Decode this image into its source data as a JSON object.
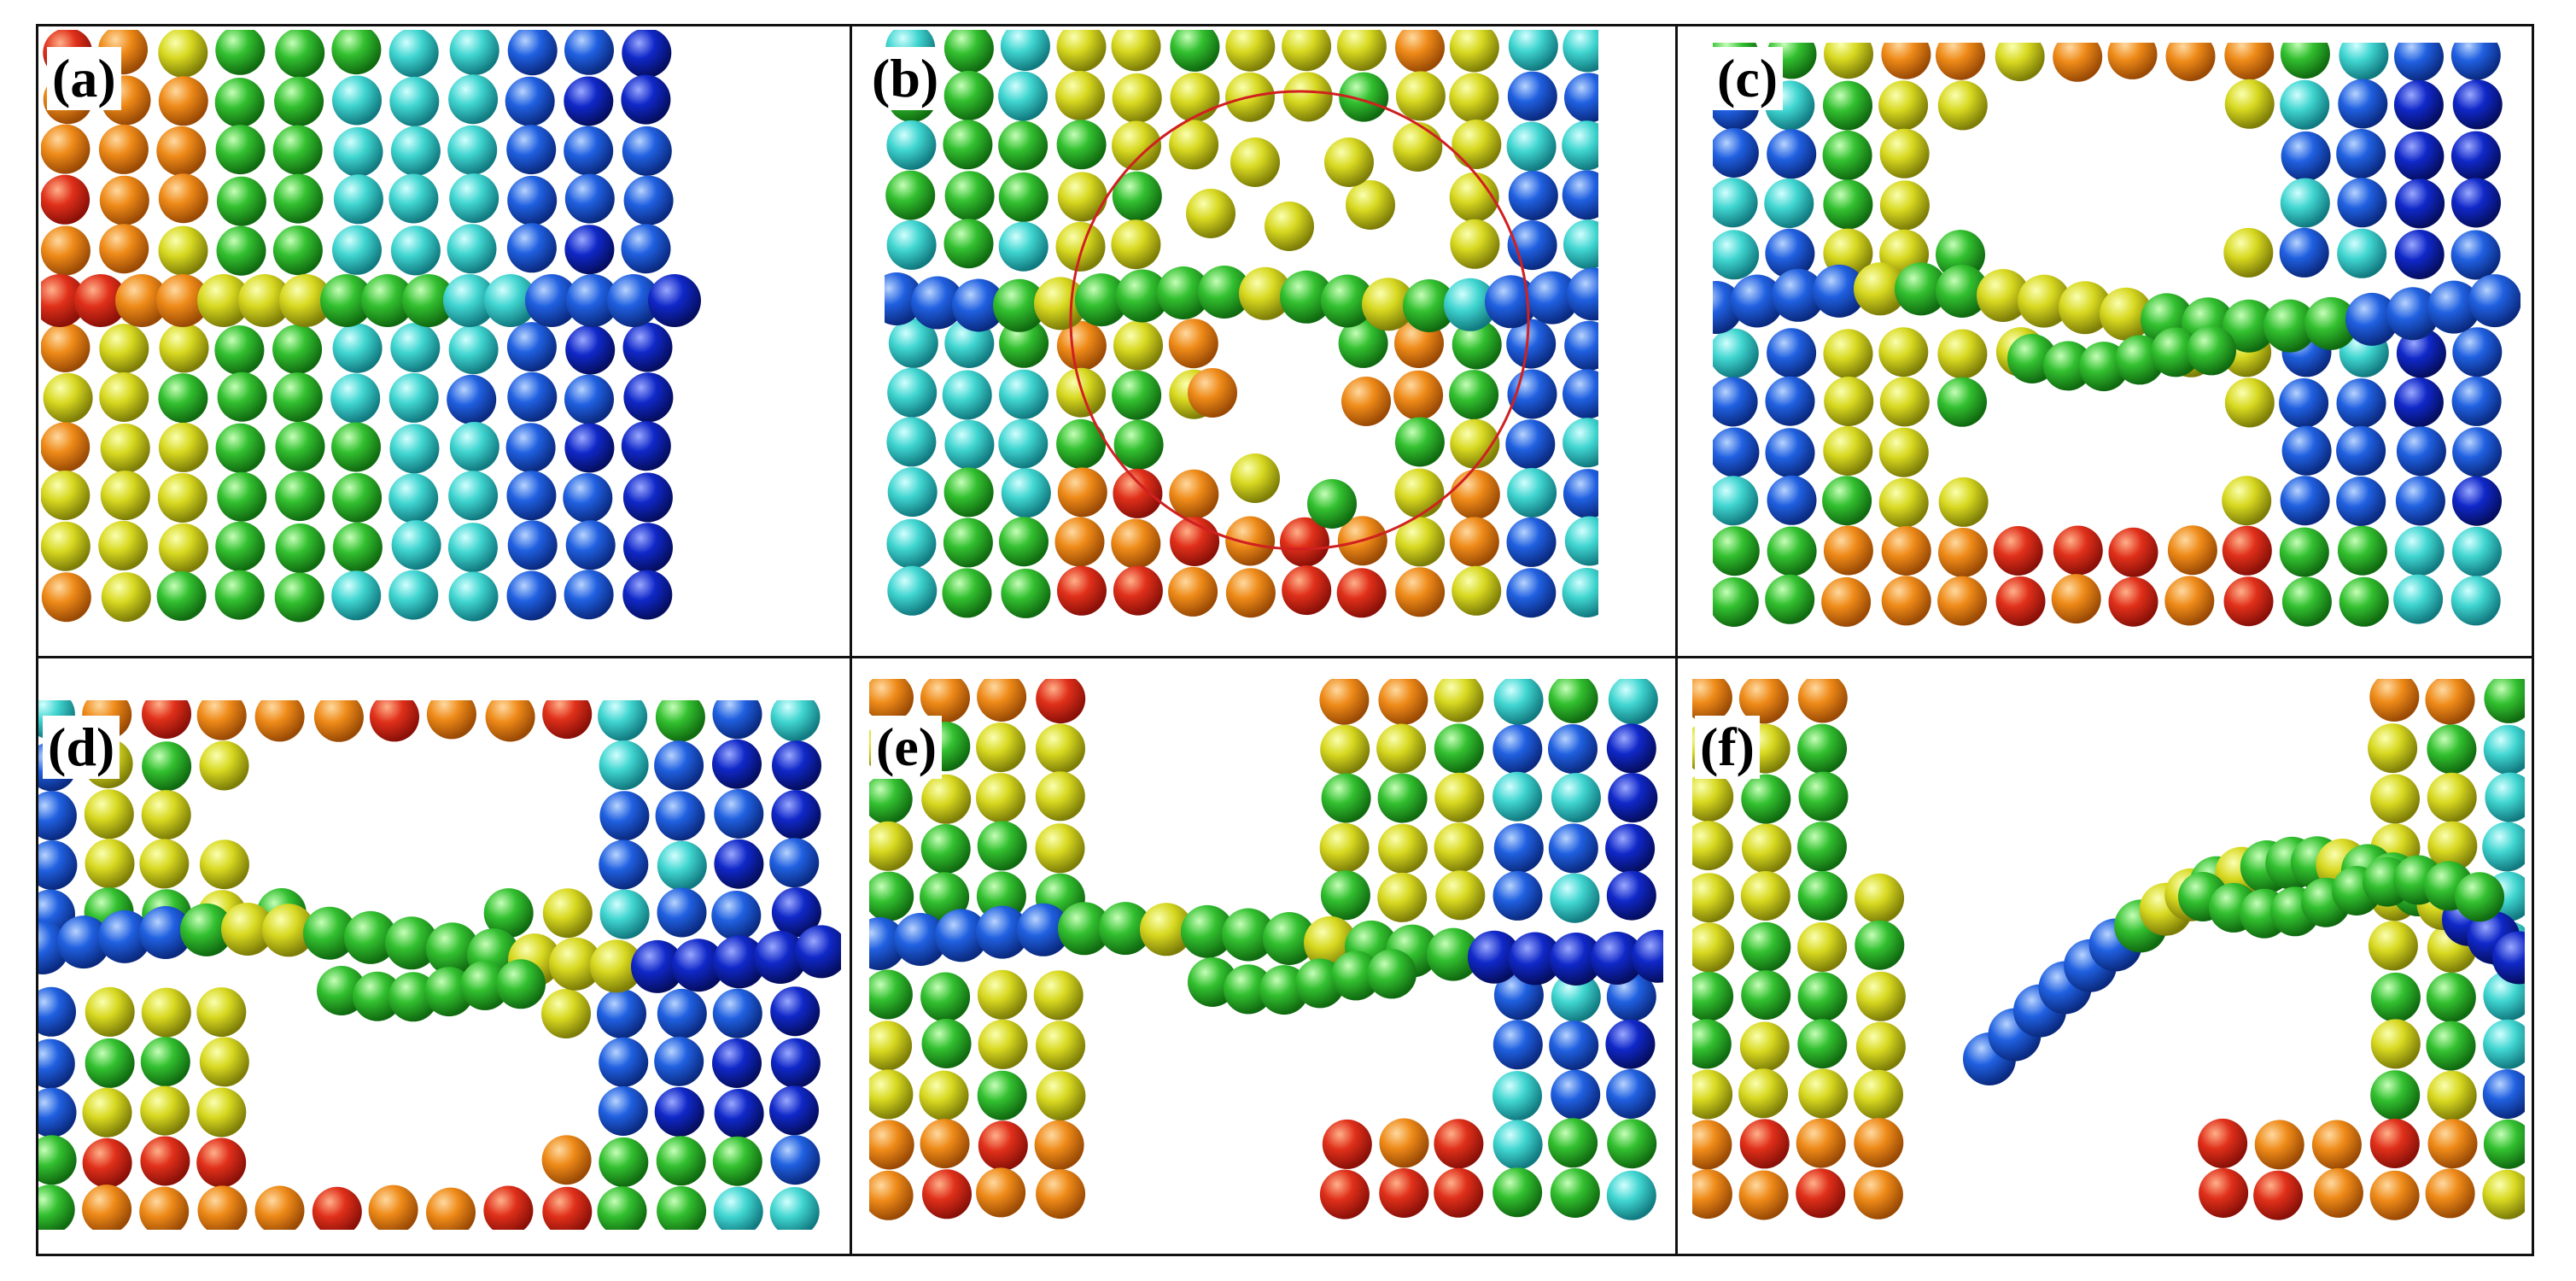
{
  "panels": [
    {
      "id": "a",
      "label": "(a)",
      "stage": "initial",
      "has_defect_circle": false
    },
    {
      "id": "b",
      "label": "(b)",
      "stage": "defect_forming",
      "has_defect_circle": true
    },
    {
      "id": "c",
      "label": "(c)",
      "stage": "pores_growing",
      "has_defect_circle": false
    },
    {
      "id": "d",
      "label": "(d)",
      "stage": "pores_large",
      "has_defect_circle": false
    },
    {
      "id": "e",
      "label": "(e)",
      "stage": "chain_exposed",
      "has_defect_circle": false
    },
    {
      "id": "f",
      "label": "(f)",
      "stage": "chain_pulled_out",
      "has_defect_circle": false
    }
  ],
  "colors": {
    "red": "#e0301a",
    "orange": "#ee8a18",
    "yellow": "#d7d820",
    "green": "#33c030",
    "cyan": "#40d5d0",
    "blue": "#2060e0",
    "deep_blue": "#1028c8",
    "circle": "#d02020",
    "frame": "#111111"
  }
}
